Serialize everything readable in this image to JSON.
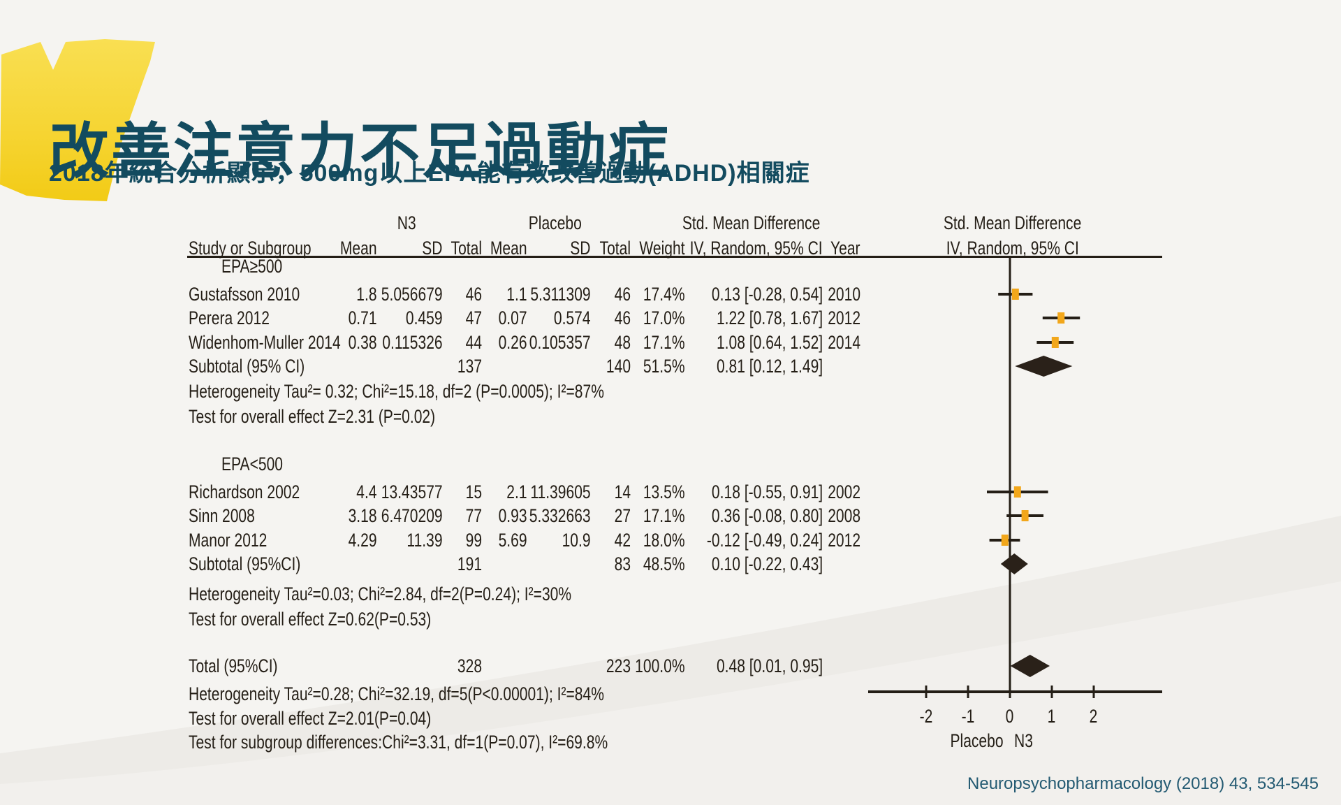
{
  "page": {
    "title": "改善注意力不足過動症",
    "subtitle": "2018年統合分析顯示，500mg以上EPA能有效改善過動(ADHD)相關症",
    "citation": "Neuropsychopharmacology (2018) 43, 534-545"
  },
  "chart_data": {
    "type": "forest",
    "group_headers": {
      "n3": "N3",
      "placebo": "Placebo",
      "smd_left": "Std. Mean Difference",
      "smd_right": "Std. Mean Difference"
    },
    "columns": [
      "Study or Subgroup",
      "Mean",
      "SD",
      "Total",
      "Mean",
      "SD",
      "Total",
      "Weight",
      "IV, Random, 95% CI",
      "Year"
    ],
    "plot_subheader": "IV, Random, 95% CI",
    "axis": {
      "ticks": [
        -2,
        -1,
        0,
        1,
        2
      ],
      "range": [
        -3.4,
        3.65
      ],
      "label_left": "Placebo",
      "label_right": "N3",
      "grid": false
    },
    "rows": [
      {
        "kind": "group",
        "label": "EPA≥500"
      },
      {
        "kind": "study",
        "study": "Gustafsson 2010",
        "mean1": "1.8",
        "sd1": "5.056679",
        "total1": "46",
        "mean2": "1.1",
        "sd2": "5.311309",
        "total2": "46",
        "weight": "17.4%",
        "ci_text": "0.13 [-0.28, 0.54]",
        "year": "2010",
        "est": 0.13,
        "lo": -0.28,
        "hi": 0.54
      },
      {
        "kind": "study",
        "study": "Perera 2012",
        "mean1": "0.71",
        "sd1": "0.459",
        "total1": "47",
        "mean2": "0.07",
        "sd2": "0.574",
        "total2": "46",
        "weight": "17.0%",
        "ci_text": "1.22 [0.78, 1.67]",
        "year": "2012",
        "est": 1.22,
        "lo": 0.78,
        "hi": 1.67
      },
      {
        "kind": "study",
        "study": "Widenhom-Muller 2014",
        "mean1": "0.38",
        "sd1": "0.115326",
        "total1": "44",
        "mean2": "0.26",
        "sd2": "0.105357",
        "total2": "48",
        "weight": "17.1%",
        "ci_text": "1.08 [0.64, 1.52]",
        "year": "2014",
        "est": 1.08,
        "lo": 0.64,
        "hi": 1.52
      },
      {
        "kind": "subtotal",
        "study": "Subtotal (95% CI)",
        "total1": "137",
        "total2": "140",
        "weight": "51.5%",
        "ci_text": "0.81 [0.12, 1.49]",
        "est": 0.81,
        "lo": 0.12,
        "hi": 1.49
      },
      {
        "kind": "note",
        "text": "Heterogeneity Tau²= 0.32; Chi²=15.18, df=2 (P=0.0005); I²=87%"
      },
      {
        "kind": "note",
        "text": "Test for overall effect Z=2.31 (P=0.02)"
      },
      {
        "kind": "group",
        "label": "EPA<500"
      },
      {
        "kind": "study",
        "study": "Richardson 2002",
        "mean1": "4.4",
        "sd1": "13.43577",
        "total1": "15",
        "mean2": "2.1",
        "sd2": "11.39605",
        "total2": "14",
        "weight": "13.5%",
        "ci_text": "0.18 [-0.55, 0.91]",
        "year": "2002",
        "est": 0.18,
        "lo": -0.55,
        "hi": 0.91
      },
      {
        "kind": "study",
        "study": "Sinn 2008",
        "mean1": "3.18",
        "sd1": "6.470209",
        "total1": "77",
        "mean2": "0.93",
        "sd2": "5.332663",
        "total2": "27",
        "weight": "17.1%",
        "ci_text": "0.36 [-0.08, 0.80]",
        "year": "2008",
        "est": 0.36,
        "lo": -0.08,
        "hi": 0.8
      },
      {
        "kind": "study",
        "study": "Manor 2012",
        "mean1": "4.29",
        "sd1": "11.39",
        "total1": "99",
        "mean2": "5.69",
        "sd2": "10.9",
        "total2": "42",
        "weight": "18.0%",
        "ci_text": "-0.12 [-0.49, 0.24]",
        "year": "2012",
        "est": -0.12,
        "lo": -0.49,
        "hi": 0.24
      },
      {
        "kind": "subtotal",
        "study": "Subtotal (95%CI)",
        "total1": "191",
        "total2": "83",
        "weight": "48.5%",
        "ci_text": "0.10 [-0.22, 0.43]",
        "est": 0.1,
        "lo": -0.22,
        "hi": 0.43
      },
      {
        "kind": "note",
        "text": "Heterogeneity Tau²=0.03; Chi²=2.84, df=2(P=0.24); I²=30%"
      },
      {
        "kind": "note",
        "text": "Test for overall effect Z=0.62(P=0.53)"
      },
      {
        "kind": "total",
        "study": "Total (95%CI)",
        "total1": "328",
        "total2": "223",
        "weight": "100.0%",
        "ci_text": "0.48 [0.01, 0.95]",
        "est": 0.48,
        "lo": 0.01,
        "hi": 0.95
      },
      {
        "kind": "note",
        "text": "Heterogeneity Tau²=0.28; Chi²=32.19, df=5(P<0.00001); I²=84%"
      },
      {
        "kind": "note",
        "text": "Test for overall effect Z=2.01(P=0.04)"
      },
      {
        "kind": "note",
        "text": "Test for subgroup differences:Chi²=3.31, df=1(P=0.07), I²=69.8%"
      }
    ],
    "colors": {
      "marker": "#F2A71B",
      "line": "#241E16",
      "diamond": "#2A2119",
      "title_teal": "#134B5F",
      "brush_yellow": "#F2CB16"
    }
  }
}
